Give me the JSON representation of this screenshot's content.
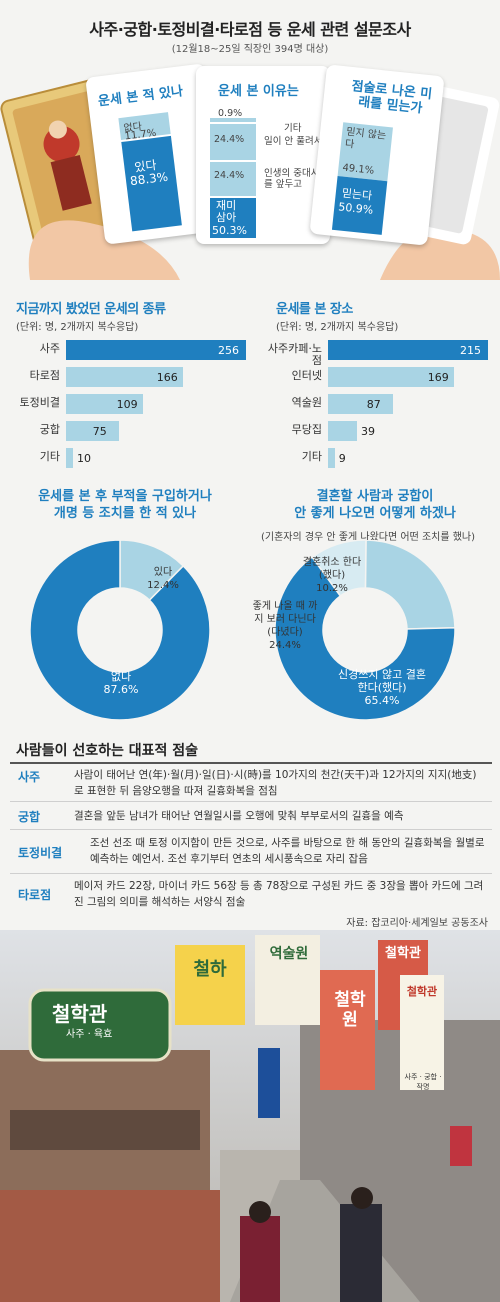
{
  "header": {
    "title": "사주·궁합·토정비결·타로점 등 운세 관련 설문조사",
    "subtitle": "(12월18~25일 직장인 394명 대상)"
  },
  "cards": {
    "card1": {
      "title": "운세 본 적 있나",
      "no_label": "없다",
      "no_pct": "11.7%",
      "yes_label": "있다",
      "yes_pct": "88.3%"
    },
    "card2": {
      "title": "운세 본 이유는",
      "items": [
        {
          "pct": "0.9%",
          "label": "기타"
        },
        {
          "pct": "24.4%",
          "label": "일이 안 풀려서"
        },
        {
          "pct": "24.4%",
          "label": "인생의 중대사를 앞두고"
        }
      ],
      "main_label": "재미 삼아",
      "main_pct": "50.3%"
    },
    "card3": {
      "title": "점술로 나온 미래를 믿는가",
      "no_label": "믿지 않는다",
      "no_pct": "49.1%",
      "yes_label": "믿는다",
      "yes_pct": "50.9%"
    }
  },
  "bar_left": {
    "title": "지금까지 봤었던 운세의 종류",
    "unit": "(단위: 명, 2개까지 복수응답)"
  },
  "bar_right": {
    "title": "운세를 본 장소",
    "unit": "(단위: 명, 2개까지 복수응답)"
  },
  "pie_left": {
    "title_line1": "운세를 본 후 부적을 구입하거나",
    "title_line2": "개명 등 조치를 한 적 있나",
    "yes_label": "있다",
    "yes_pct": "12.4%",
    "no_label": "없다",
    "no_pct": "87.6%"
  },
  "pie_right": {
    "title_line1": "결혼할 사람과 궁합이",
    "title_line2": "안 좋게 나오면 어떻게 하겠나",
    "note": "(기혼자의 경우 안 좋게 나왔다면 어떤 조치를 했나)",
    "a_label": "결혼취소 한다(했다)",
    "a_pct": "10.2%",
    "b_label": "좋게 나올 때 까지 보러 다닌다 (다녔다)",
    "b_pct": "24.4%",
    "c_label": "신경쓰지 않고 결혼한다(했다)",
    "c_pct": "65.4%"
  },
  "table": {
    "title": "사람들이 선호하는 대표적 점술",
    "rows": [
      {
        "key": "사주",
        "desc": "사람이 태어난 연(年)·월(月)·일(日)·시(時)를 10가지의 천간(天干)과 12가지의 지지(地支)로 표현한 뒤 음양오행을 따져 길흉화복을 점침"
      },
      {
        "key": "궁합",
        "desc": "결혼을 앞둔 남녀가 태어난 연월일시를 오행에 맞춰 부부로서의 길흉을 예측"
      },
      {
        "key": "토정비결",
        "desc": "조선 선조 때 토정 이지함이 만든 것으로, 사주를 바탕으로 한 해 동안의 길흉화복을 월별로 예측하는 예언서. 조선 후기부터 연초의 세시풍속으로 자리 잡음"
      },
      {
        "key": "타로점",
        "desc": "메이저 카드 22장, 마이너 카드 56장 등 총 78장으로 구성된 카드 중 3장을 뽑아 카드에 그려진 그림의 의미를 해석하는 서양식 점술"
      }
    ],
    "source": "자료: 잡코리아·세계일보 공동조사"
  },
  "photo": {
    "signs": [
      "철학관",
      "사주 · 육효",
      "철학원",
      "철하",
      "역술원",
      "철학관",
      "철학관",
      "사주 · 궁합 · 작명"
    ]
  },
  "colors": {
    "accent": "#1f7fbf",
    "light": "#a9d4e4",
    "bg": "#f4f4f2"
  },
  "chart_data": [
    {
      "type": "bar",
      "title": "운세 본 적 있나",
      "categories": [
        "없다",
        "있다"
      ],
      "values": [
        11.7,
        88.3
      ],
      "unit": "%"
    },
    {
      "type": "bar",
      "title": "운세 본 이유는",
      "categories": [
        "기타",
        "일이 안 풀려서",
        "인생의 중대사를 앞두고",
        "재미 삼아"
      ],
      "values": [
        0.9,
        24.4,
        24.4,
        50.3
      ],
      "unit": "%"
    },
    {
      "type": "bar",
      "title": "점술로 나온 미래를 믿는가",
      "categories": [
        "믿지 않는다",
        "믿는다"
      ],
      "values": [
        49.1,
        50.9
      ],
      "unit": "%"
    },
    {
      "type": "bar",
      "orientation": "horizontal",
      "title": "지금까지 봤었던 운세의 종류",
      "categories": [
        "사주",
        "타로점",
        "토정비결",
        "궁합",
        "기타"
      ],
      "values": [
        256,
        166,
        109,
        75,
        10
      ],
      "xlim": [
        0,
        260
      ]
    },
    {
      "type": "bar",
      "orientation": "horizontal",
      "title": "운세를 본 장소",
      "categories": [
        "사주카페·노점",
        "인터넷",
        "역술원",
        "무당집",
        "기타"
      ],
      "values": [
        215,
        169,
        87,
        39,
        9
      ],
      "xlim": [
        0,
        215
      ]
    },
    {
      "type": "pie",
      "title": "운세를 본 후 부적을 구입하거나 개명 등 조치를 한 적 있나",
      "categories": [
        "있다",
        "없다"
      ],
      "values": [
        12.4,
        87.6
      ],
      "unit": "%"
    },
    {
      "type": "pie",
      "title": "결혼할 사람과 궁합이 안 좋게 나오면 어떻게 하겠나",
      "categories": [
        "결혼취소 한다(했다)",
        "좋게 나올 때 까지 보러 다닌다 (다녔다)",
        "신경쓰지 않고 결혼한다(했다)"
      ],
      "values": [
        10.2,
        24.4,
        65.4
      ],
      "unit": "%"
    }
  ]
}
